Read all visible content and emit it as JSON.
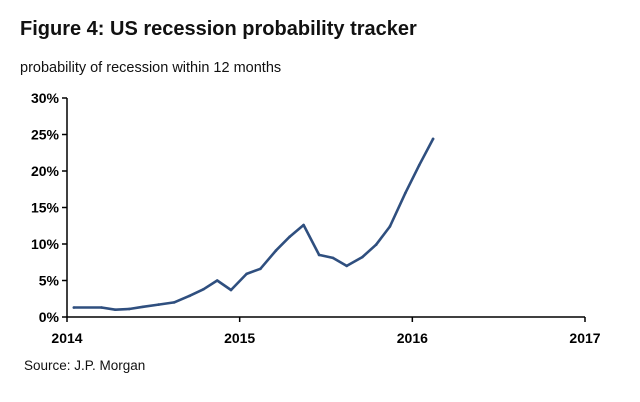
{
  "title": "Figure 4: US recession probability tracker",
  "subtitle": "probability of recession within 12 months",
  "source": "Source: J.P. Morgan",
  "colors": {
    "line": "#2f4f7f",
    "axis": "#000000"
  },
  "chart_data": {
    "type": "line",
    "title": "Figure 4: US recession probability tracker",
    "subtitle": "probability of recession within 12 months",
    "xlabel": "",
    "ylabel": "",
    "xlim": [
      2014,
      2017
    ],
    "ylim": [
      0,
      30
    ],
    "grid": false,
    "legend": "none",
    "x_ticks": [
      "2014",
      "2015",
      "2016",
      "2017"
    ],
    "y_ticks": [
      "0%",
      "5%",
      "10%",
      "15%",
      "20%",
      "25%",
      "30%"
    ],
    "series": [
      {
        "x": [
          2014.04,
          2014.2,
          2014.28,
          2014.36,
          2014.44,
          2014.53,
          2014.62,
          2014.71,
          2014.79,
          2014.87,
          2014.95,
          2015.04,
          2015.12,
          2015.21,
          2015.29,
          2015.37,
          2015.46,
          2015.54,
          2015.62,
          2015.71,
          2015.79,
          2015.87,
          2015.96,
          2016.04,
          2016.12
        ],
        "values": [
          1.3,
          1.3,
          1.0,
          1.1,
          1.4,
          1.7,
          2.0,
          2.9,
          3.8,
          5.0,
          3.7,
          5.9,
          6.6,
          9.1,
          11.0,
          12.6,
          8.5,
          8.1,
          7.0,
          8.2,
          9.9,
          12.4,
          17.0,
          20.8,
          24.4
        ]
      }
    ]
  }
}
